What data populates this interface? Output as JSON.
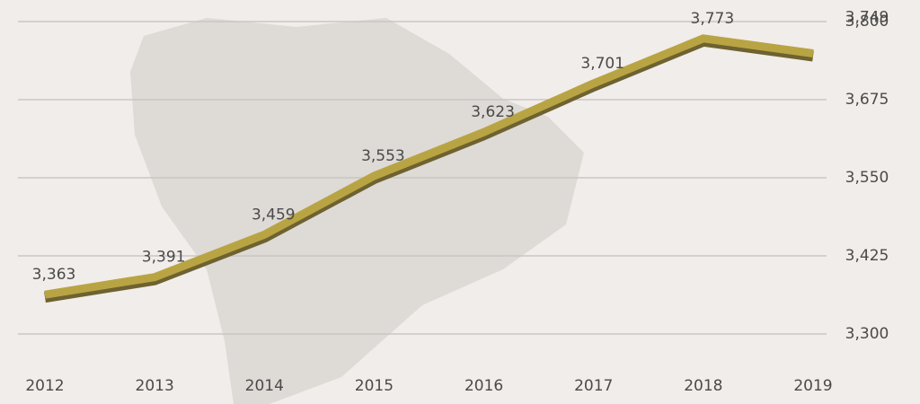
{
  "chart_data": {
    "type": "line",
    "categories": [
      "2012",
      "2013",
      "2014",
      "2015",
      "2016",
      "2017",
      "2018",
      "2019"
    ],
    "series": [
      {
        "color": "#b9a444",
        "values": [
          3363,
          3391,
          3459,
          3553,
          3623,
          3701,
          3773,
          3749
        ],
        "value_labels": [
          "3,363",
          "3,391",
          "3,459",
          "3,553",
          "3,623",
          "3,701",
          "3,773",
          "3,749"
        ]
      }
    ],
    "ylim": [
      3300,
      3800
    ],
    "yticks": [
      {
        "value": 3300,
        "label": "3,300"
      },
      {
        "value": 3425,
        "label": "3,425"
      },
      {
        "value": 3550,
        "label": "3,550"
      },
      {
        "value": 3675,
        "label": "3,675"
      },
      {
        "value": 3800,
        "label": "3,800"
      }
    ],
    "grid": true
  }
}
